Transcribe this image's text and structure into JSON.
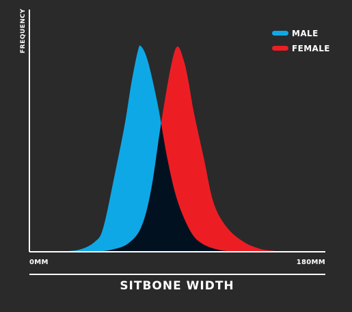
{
  "chart_data": {
    "type": "area",
    "ylabel": "FREQUENCY",
    "xlabel": "SITBONE WIDTH",
    "xlim": [
      0,
      180
    ],
    "x_tick_labels": [
      "0MM",
      "180MM"
    ],
    "legend_position": "top-right",
    "overlap_color": "#02111f",
    "series": [
      {
        "name": "MALE",
        "color": "#0fa8e6",
        "x": [
          15,
          30,
          40,
          45,
          52,
          58,
          62,
          66,
          68,
          72,
          78,
          84,
          90,
          98,
          105,
          115,
          125
        ],
        "y": [
          0,
          0.01,
          0.05,
          0.12,
          0.38,
          0.62,
          0.82,
          0.98,
          1.0,
          0.93,
          0.72,
          0.45,
          0.25,
          0.1,
          0.04,
          0.01,
          0
        ]
      },
      {
        "name": "FEMALE",
        "color": "#ec1e24",
        "x": [
          40,
          50,
          60,
          68,
          74,
          80,
          86,
          90,
          94,
          97,
          100,
          106,
          112,
          120,
          130,
          140,
          148,
          155
        ],
        "y": [
          0,
          0.01,
          0.04,
          0.12,
          0.3,
          0.62,
          0.9,
          1.0,
          0.93,
          0.82,
          0.68,
          0.46,
          0.24,
          0.12,
          0.05,
          0.015,
          0.005,
          0
        ]
      }
    ]
  }
}
